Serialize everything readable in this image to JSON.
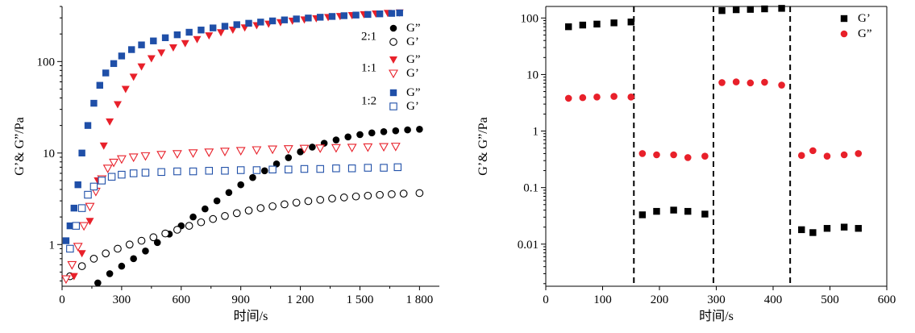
{
  "chart_data": [
    {
      "type": "scatter",
      "xlabel": "时间/s",
      "ylabel": "G’& G”/Pa",
      "yscale": "log",
      "xlim": [
        0,
        1900
      ],
      "ylim": [
        0.35,
        400
      ],
      "xticks": [
        0,
        300,
        600,
        900,
        1200,
        1500,
        1800
      ],
      "xtick_labels": [
        "0",
        "300",
        "600",
        "900",
        "1 200",
        "1 500",
        "1 800"
      ],
      "yticks": [
        1,
        10,
        100
      ],
      "ytick_labels": [
        "1",
        "10",
        "100"
      ],
      "legend_position": "right",
      "legend_groups": [
        {
          "label": "2:1",
          "series": [
            0,
            1
          ]
        },
        {
          "label": "1:1",
          "series": [
            2,
            3
          ]
        },
        {
          "label": "1:2",
          "series": [
            4,
            5
          ]
        }
      ],
      "series": [
        {
          "name": "G”",
          "marker": "circle",
          "filled": true,
          "color": "#000000",
          "points": [
            [
              180,
              0.38
            ],
            [
              240,
              0.48
            ],
            [
              300,
              0.58
            ],
            [
              360,
              0.7
            ],
            [
              420,
              0.85
            ],
            [
              480,
              1.05
            ],
            [
              540,
              1.3
            ],
            [
              600,
              1.6
            ],
            [
              660,
              2.0
            ],
            [
              720,
              2.45
            ],
            [
              780,
              3.0
            ],
            [
              840,
              3.7
            ],
            [
              900,
              4.5
            ],
            [
              960,
              5.4
            ],
            [
              1020,
              6.4
            ],
            [
              1080,
              7.6
            ],
            [
              1140,
              8.9
            ],
            [
              1200,
              10.3
            ],
            [
              1260,
              11.6
            ],
            [
              1320,
              12.8
            ],
            [
              1380,
              13.9
            ],
            [
              1440,
              15.0
            ],
            [
              1500,
              15.9
            ],
            [
              1560,
              16.6
            ],
            [
              1620,
              17.1
            ],
            [
              1680,
              17.5
            ],
            [
              1740,
              17.9
            ],
            [
              1800,
              18.2
            ]
          ]
        },
        {
          "name": "G’",
          "marker": "circle",
          "filled": false,
          "color": "#000000",
          "points": [
            [
              40,
              0.45
            ],
            [
              100,
              0.58
            ],
            [
              160,
              0.7
            ],
            [
              220,
              0.8
            ],
            [
              280,
              0.9
            ],
            [
              340,
              1.0
            ],
            [
              400,
              1.1
            ],
            [
              460,
              1.2
            ],
            [
              520,
              1.32
            ],
            [
              580,
              1.45
            ],
            [
              640,
              1.6
            ],
            [
              700,
              1.75
            ],
            [
              760,
              1.9
            ],
            [
              820,
              2.05
            ],
            [
              880,
              2.2
            ],
            [
              940,
              2.35
            ],
            [
              1000,
              2.5
            ],
            [
              1060,
              2.62
            ],
            [
              1120,
              2.75
            ],
            [
              1180,
              2.87
            ],
            [
              1240,
              2.98
            ],
            [
              1300,
              3.08
            ],
            [
              1360,
              3.18
            ],
            [
              1420,
              3.27
            ],
            [
              1480,
              3.35
            ],
            [
              1540,
              3.42
            ],
            [
              1600,
              3.49
            ],
            [
              1660,
              3.55
            ],
            [
              1720,
              3.6
            ],
            [
              1800,
              3.65
            ]
          ]
        },
        {
          "name": "G”",
          "marker": "triangle-down",
          "filled": true,
          "color": "#e8202a",
          "points": [
            [
              60,
              0.45
            ],
            [
              100,
              0.8
            ],
            [
              140,
              1.8
            ],
            [
              180,
              5
            ],
            [
              210,
              12
            ],
            [
              240,
              22
            ],
            [
              280,
              34
            ],
            [
              320,
              50
            ],
            [
              360,
              68
            ],
            [
              400,
              88
            ],
            [
              450,
              108
            ],
            [
              500,
              125
            ],
            [
              560,
              142
            ],
            [
              620,
              158
            ],
            [
              680,
              175
            ],
            [
              740,
              192
            ],
            [
              800,
              208
            ],
            [
              860,
              222
            ],
            [
              920,
              235
            ],
            [
              980,
              248
            ],
            [
              1040,
              258
            ],
            [
              1100,
              268
            ],
            [
              1160,
              278
            ],
            [
              1220,
              287
            ],
            [
              1280,
              296
            ],
            [
              1340,
              305
            ],
            [
              1400,
              313
            ],
            [
              1460,
              320
            ],
            [
              1520,
              327
            ],
            [
              1580,
              333
            ],
            [
              1640,
              338
            ],
            [
              1700,
              342
            ]
          ]
        },
        {
          "name": "G’",
          "marker": "triangle-down",
          "filled": false,
          "color": "#e8202a",
          "points": [
            [
              20,
              0.42
            ],
            [
              50,
              0.6
            ],
            [
              80,
              0.95
            ],
            [
              110,
              1.6
            ],
            [
              140,
              2.6
            ],
            [
              170,
              3.8
            ],
            [
              200,
              5.2
            ],
            [
              230,
              6.8
            ],
            [
              260,
              7.9
            ],
            [
              300,
              8.6
            ],
            [
              360,
              9.0
            ],
            [
              420,
              9.3
            ],
            [
              500,
              9.6
            ],
            [
              580,
              9.8
            ],
            [
              660,
              10.0
            ],
            [
              740,
              10.2
            ],
            [
              820,
              10.4
            ],
            [
              900,
              10.6
            ],
            [
              980,
              10.8
            ],
            [
              1060,
              11.0
            ],
            [
              1140,
              11.1
            ],
            [
              1220,
              11.2
            ],
            [
              1300,
              11.3
            ],
            [
              1380,
              11.4
            ],
            [
              1460,
              11.5
            ],
            [
              1540,
              11.6
            ],
            [
              1620,
              11.7
            ],
            [
              1680,
              11.8
            ]
          ]
        },
        {
          "name": "G”",
          "marker": "square",
          "filled": true,
          "color": "#1f4fa8",
          "points": [
            [
              20,
              1.1
            ],
            [
              40,
              1.6
            ],
            [
              60,
              2.5
            ],
            [
              80,
              4.5
            ],
            [
              100,
              10
            ],
            [
              130,
              20
            ],
            [
              160,
              35
            ],
            [
              190,
              55
            ],
            [
              220,
              75
            ],
            [
              260,
              95
            ],
            [
              300,
              115
            ],
            [
              350,
              135
            ],
            [
              400,
              152
            ],
            [
              460,
              168
            ],
            [
              520,
              182
            ],
            [
              580,
              196
            ],
            [
              640,
              209
            ],
            [
              700,
              221
            ],
            [
              760,
              233
            ],
            [
              820,
              243
            ],
            [
              880,
              253
            ],
            [
              940,
              262
            ],
            [
              1000,
              270
            ],
            [
              1060,
              278
            ],
            [
              1120,
              285
            ],
            [
              1180,
              292
            ],
            [
              1240,
              299
            ],
            [
              1300,
              305
            ],
            [
              1360,
              311
            ],
            [
              1420,
              317
            ],
            [
              1480,
              322
            ],
            [
              1540,
              327
            ],
            [
              1600,
              332
            ],
            [
              1660,
              336
            ],
            [
              1700,
              340
            ]
          ]
        },
        {
          "name": "G’",
          "marker": "square",
          "filled": false,
          "color": "#1f4fa8",
          "points": [
            [
              40,
              0.9
            ],
            [
              70,
              1.6
            ],
            [
              100,
              2.5
            ],
            [
              130,
              3.5
            ],
            [
              160,
              4.3
            ],
            [
              200,
              5.0
            ],
            [
              250,
              5.5
            ],
            [
              300,
              5.8
            ],
            [
              360,
              6.0
            ],
            [
              420,
              6.1
            ],
            [
              500,
              6.2
            ],
            [
              580,
              6.3
            ],
            [
              660,
              6.3
            ],
            [
              740,
              6.4
            ],
            [
              820,
              6.4
            ],
            [
              900,
              6.5
            ],
            [
              980,
              6.5
            ],
            [
              1060,
              6.6
            ],
            [
              1140,
              6.6
            ],
            [
              1220,
              6.7
            ],
            [
              1300,
              6.7
            ],
            [
              1380,
              6.8
            ],
            [
              1460,
              6.8
            ],
            [
              1540,
              6.9
            ],
            [
              1620,
              6.9
            ],
            [
              1690,
              7.0
            ]
          ]
        }
      ]
    },
    {
      "type": "scatter",
      "xlabel": "时间/s",
      "ylabel": "G’& G”/Pa",
      "yscale": "log",
      "xlim": [
        0,
        600
      ],
      "ylim": [
        0.0018,
        160
      ],
      "xticks": [
        0,
        100,
        200,
        300,
        400,
        500,
        600
      ],
      "xtick_labels": [
        "0",
        "100",
        "200",
        "300",
        "400",
        "500",
        "600"
      ],
      "yticks": [
        0.01,
        0.1,
        1,
        10,
        100
      ],
      "ytick_labels": [
        "0.01",
        "0.1",
        "1",
        "10",
        "100"
      ],
      "legend_position": "top-right",
      "vlines": [
        155,
        295,
        430
      ],
      "series": [
        {
          "name": "G’",
          "marker": "square",
          "color": "#000000",
          "points": [
            [
              40,
              70
            ],
            [
              65,
              75
            ],
            [
              90,
              78
            ],
            [
              120,
              82
            ],
            [
              150,
              85
            ],
            [
              170,
              0.033
            ],
            [
              195,
              0.038
            ],
            [
              225,
              0.04
            ],
            [
              250,
              0.038
            ],
            [
              280,
              0.034
            ],
            [
              310,
              135
            ],
            [
              335,
              140
            ],
            [
              360,
              142
            ],
            [
              385,
              145
            ],
            [
              415,
              148
            ],
            [
              450,
              0.018
            ],
            [
              470,
              0.016
            ],
            [
              495,
              0.019
            ],
            [
              525,
              0.02
            ],
            [
              550,
              0.019
            ]
          ]
        },
        {
          "name": "G”",
          "marker": "circle",
          "color": "#e8202a",
          "points": [
            [
              40,
              3.8
            ],
            [
              65,
              3.9
            ],
            [
              90,
              4.0
            ],
            [
              120,
              4.1
            ],
            [
              150,
              4.0
            ],
            [
              170,
              0.4
            ],
            [
              195,
              0.38
            ],
            [
              225,
              0.38
            ],
            [
              250,
              0.34
            ],
            [
              280,
              0.36
            ],
            [
              310,
              7.2
            ],
            [
              335,
              7.4
            ],
            [
              360,
              7.1
            ],
            [
              385,
              7.3
            ],
            [
              415,
              6.5
            ],
            [
              450,
              0.37
            ],
            [
              470,
              0.45
            ],
            [
              495,
              0.36
            ],
            [
              525,
              0.38
            ],
            [
              550,
              0.4
            ]
          ]
        }
      ]
    }
  ]
}
